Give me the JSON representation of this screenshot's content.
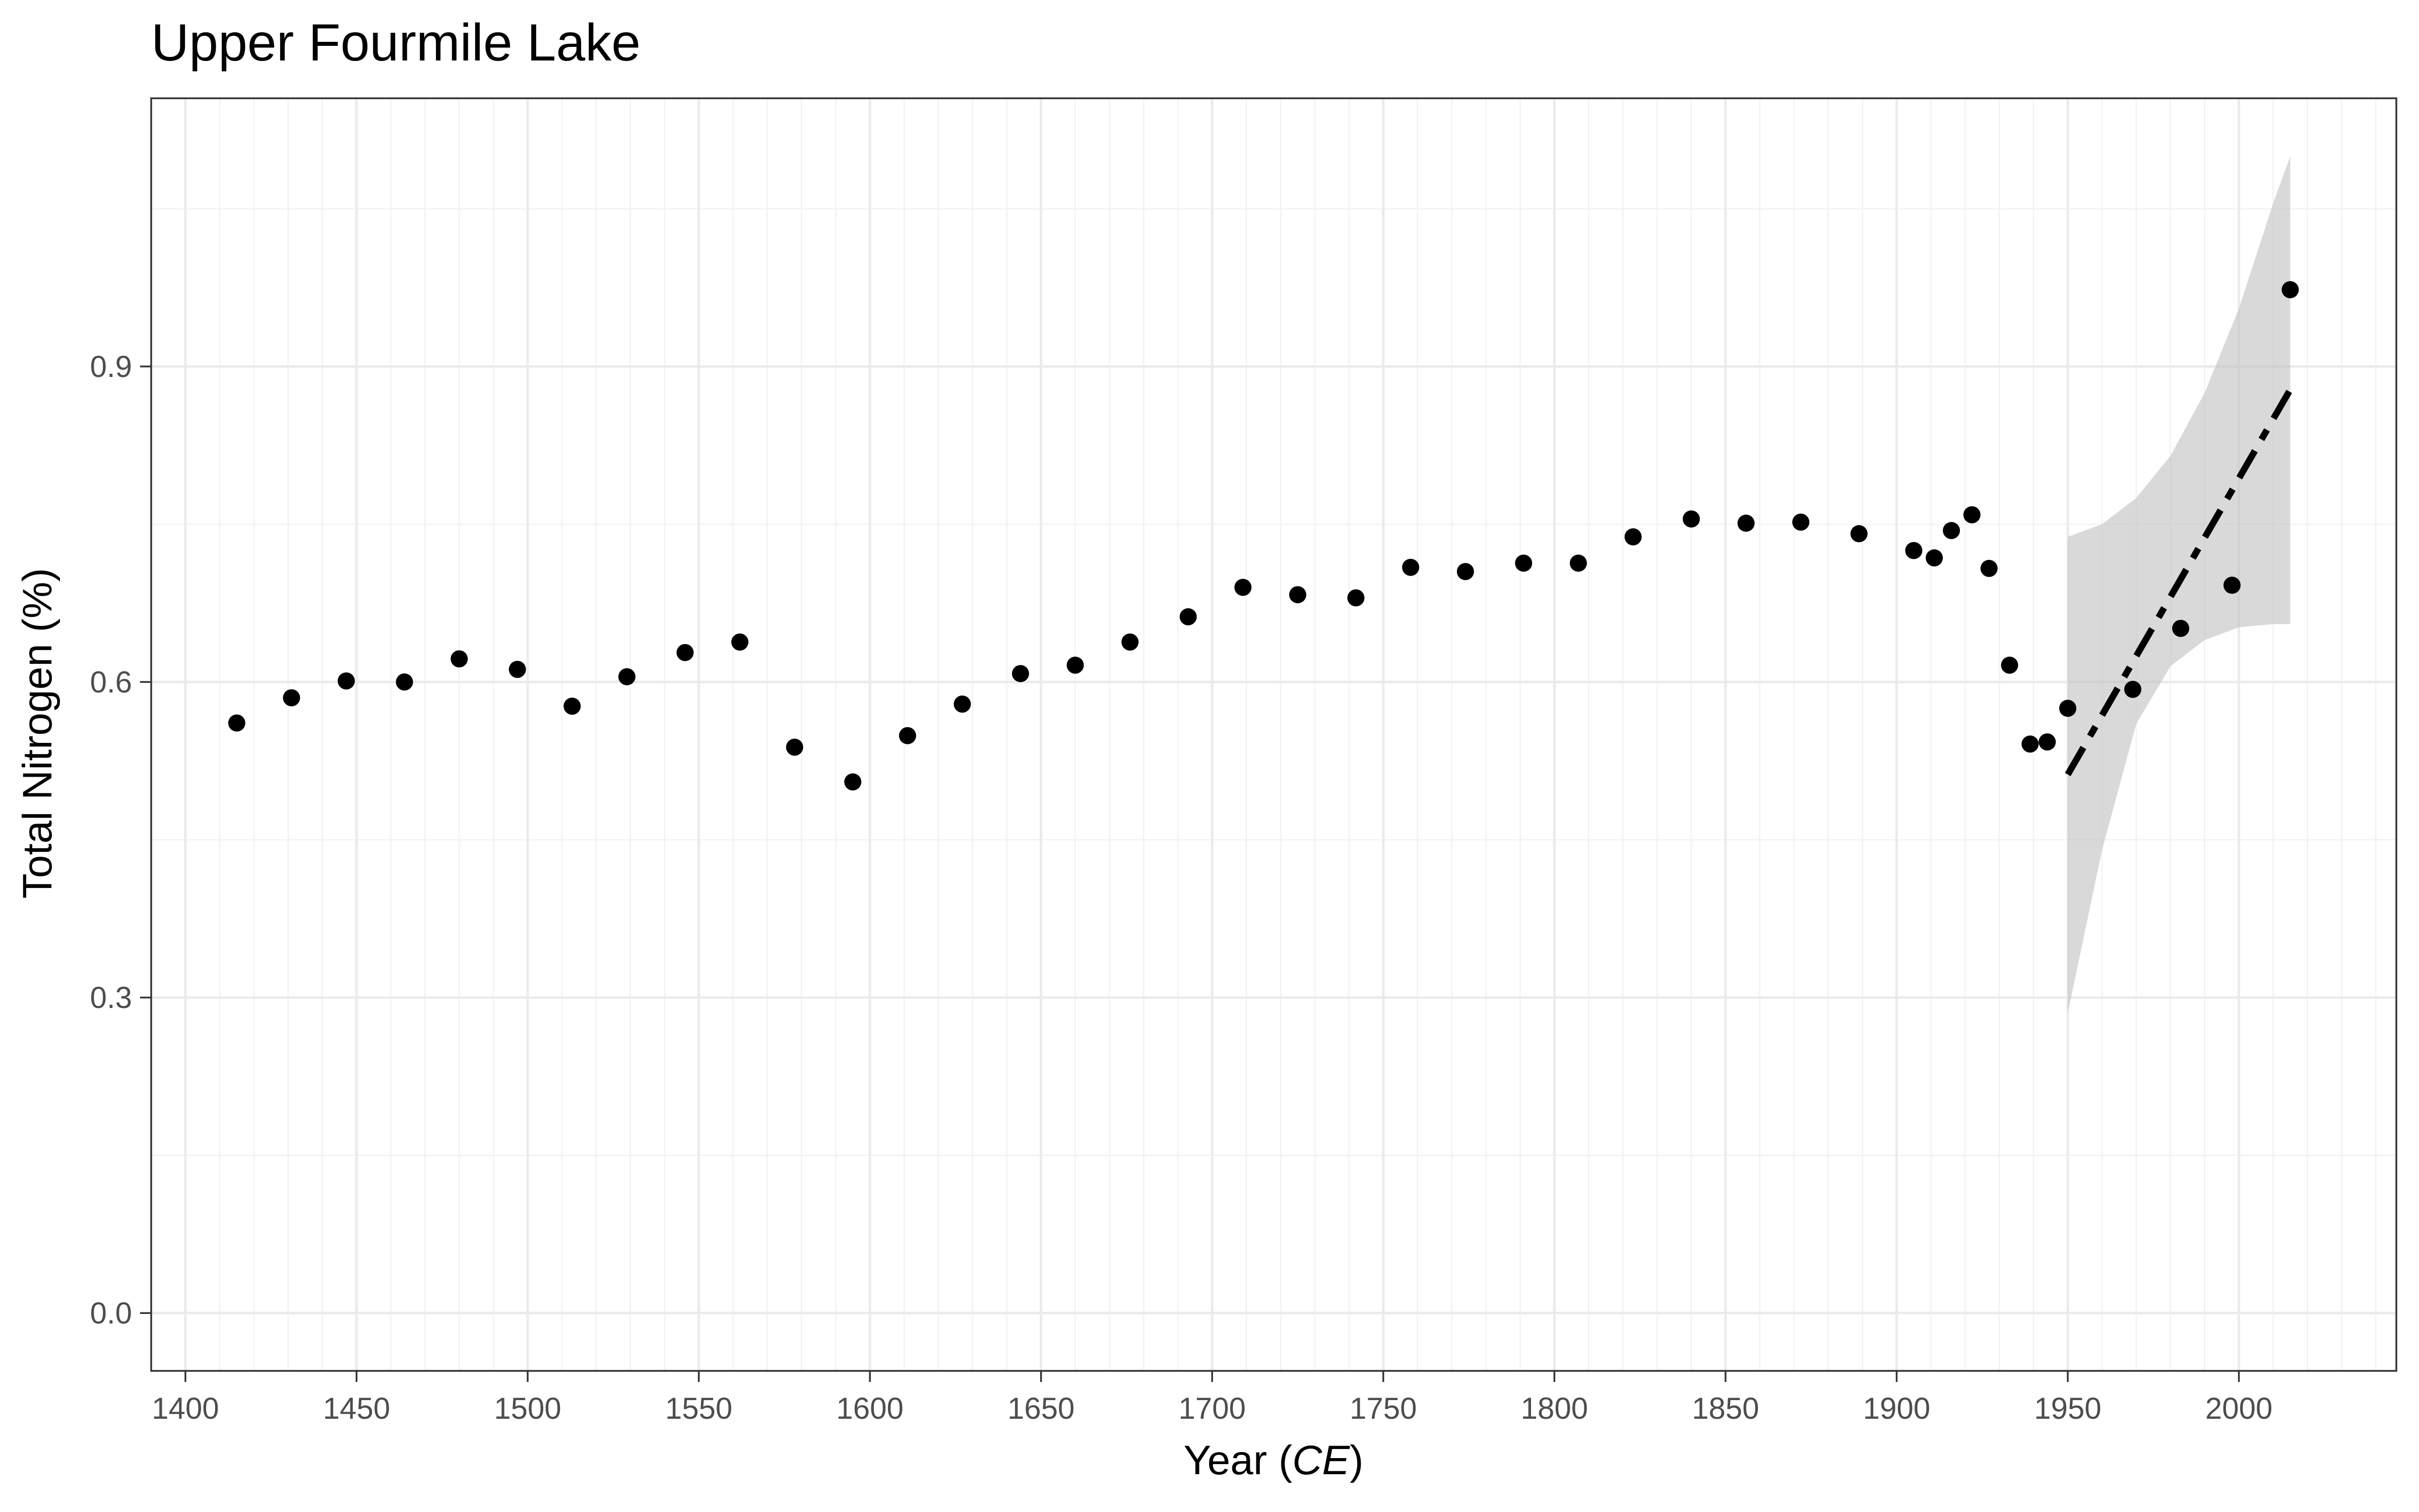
{
  "chart_data": {
    "type": "scatter",
    "title": "Upper Fourmile Lake",
    "xlabel_prefix": "Year (",
    "xlabel_unit": "CE",
    "xlabel_suffix": ")",
    "ylabel": "Total Nitrogen (%)",
    "xlim": [
      1390,
      2046
    ],
    "ylim": [
      -0.055,
      1.155
    ],
    "x_ticks": [
      1400,
      1450,
      1500,
      1550,
      1600,
      1650,
      1700,
      1750,
      1800,
      1850,
      1900,
      1950,
      2000
    ],
    "y_ticks": [
      0.0,
      0.3,
      0.6,
      0.9
    ],
    "y_tick_labels": [
      "0.0",
      "0.3",
      "0.6",
      "0.9"
    ],
    "grid": true,
    "legend": "none",
    "colors": {
      "points": "#000000",
      "trend_line": "#000000",
      "ribbon": "#bfbfbf"
    },
    "points": [
      {
        "x": 1415,
        "y": 0.561
      },
      {
        "x": 1431,
        "y": 0.585
      },
      {
        "x": 1447,
        "y": 0.601
      },
      {
        "x": 1464,
        "y": 0.6
      },
      {
        "x": 1480,
        "y": 0.622
      },
      {
        "x": 1497,
        "y": 0.612
      },
      {
        "x": 1513,
        "y": 0.577
      },
      {
        "x": 1529,
        "y": 0.605
      },
      {
        "x": 1546,
        "y": 0.628
      },
      {
        "x": 1562,
        "y": 0.638
      },
      {
        "x": 1578,
        "y": 0.538
      },
      {
        "x": 1595,
        "y": 0.505
      },
      {
        "x": 1611,
        "y": 0.549
      },
      {
        "x": 1627,
        "y": 0.579
      },
      {
        "x": 1644,
        "y": 0.608
      },
      {
        "x": 1660,
        "y": 0.616
      },
      {
        "x": 1676,
        "y": 0.638
      },
      {
        "x": 1693,
        "y": 0.662
      },
      {
        "x": 1709,
        "y": 0.69
      },
      {
        "x": 1725,
        "y": 0.683
      },
      {
        "x": 1742,
        "y": 0.68
      },
      {
        "x": 1758,
        "y": 0.709
      },
      {
        "x": 1774,
        "y": 0.705
      },
      {
        "x": 1791,
        "y": 0.713
      },
      {
        "x": 1807,
        "y": 0.713
      },
      {
        "x": 1823,
        "y": 0.738
      },
      {
        "x": 1840,
        "y": 0.755
      },
      {
        "x": 1856,
        "y": 0.751
      },
      {
        "x": 1872,
        "y": 0.752
      },
      {
        "x": 1889,
        "y": 0.741
      },
      {
        "x": 1905,
        "y": 0.725
      },
      {
        "x": 1911,
        "y": 0.718
      },
      {
        "x": 1916,
        "y": 0.744
      },
      {
        "x": 1922,
        "y": 0.759
      },
      {
        "x": 1927,
        "y": 0.708
      },
      {
        "x": 1933,
        "y": 0.616
      },
      {
        "x": 1939,
        "y": 0.541
      },
      {
        "x": 1944,
        "y": 0.543
      },
      {
        "x": 1950,
        "y": 0.575
      },
      {
        "x": 1969,
        "y": 0.593
      },
      {
        "x": 1983,
        "y": 0.651
      },
      {
        "x": 1998,
        "y": 0.692
      },
      {
        "x": 2015,
        "y": 0.973
      }
    ],
    "trend": {
      "style": "dashed",
      "x": [
        1950,
        2015
      ],
      "y": [
        0.512,
        0.878
      ],
      "ribbon_x": [
        1950,
        1960,
        1970,
        1980,
        1990,
        2000,
        2010,
        2015
      ],
      "ribbon_lower": [
        0.285,
        0.44,
        0.56,
        0.615,
        0.64,
        0.652,
        0.655,
        0.655
      ],
      "ribbon_upper": [
        0.738,
        0.75,
        0.775,
        0.815,
        0.875,
        0.955,
        1.055,
        1.1
      ]
    }
  }
}
